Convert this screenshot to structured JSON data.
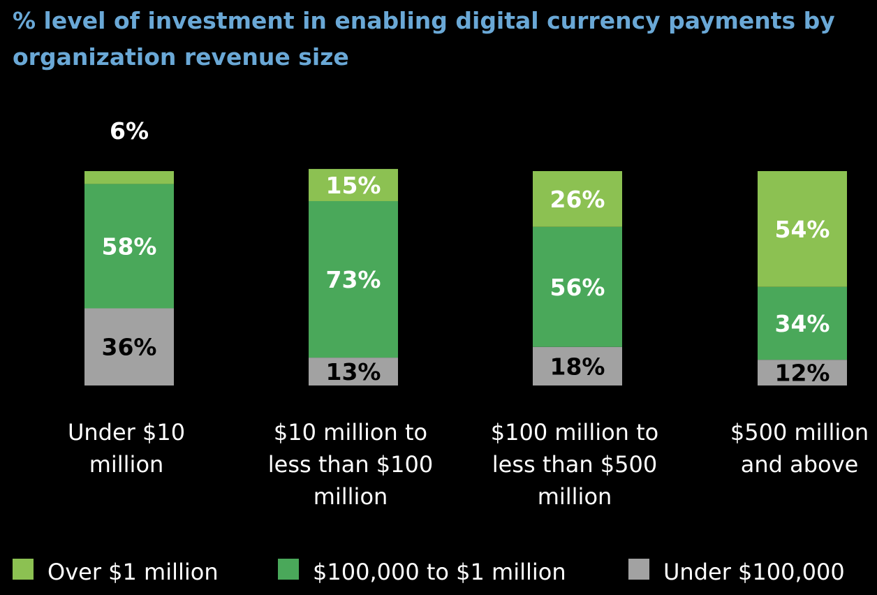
{
  "chart_data": {
    "type": "bar",
    "stacked": true,
    "title": "% level of investment in enabling digital currency payments by organization revenue size",
    "xlabel": "",
    "ylabel": "",
    "ylim": [
      0,
      100
    ],
    "categories": [
      [
        "Under $10",
        "million"
      ],
      [
        "$10 million to",
        "less than $100",
        "million"
      ],
      [
        "$100 million to",
        "less than $500",
        "million"
      ],
      [
        "$500 million",
        "and above"
      ]
    ],
    "series": [
      {
        "name": "Under $100,000",
        "color": "#a2a2a2",
        "label_color": "#000000",
        "values": [
          36,
          13,
          18,
          12
        ],
        "labels": [
          "36%",
          "13%",
          "18%",
          "12%"
        ]
      },
      {
        "name": "$100,000 to $1 million",
        "color": "#4aa85a",
        "label_color": "#ffffff",
        "values": [
          58,
          73,
          56,
          34
        ],
        "labels": [
          "58%",
          "73%",
          "56%",
          "34%"
        ]
      },
      {
        "name": "Over $1 million",
        "color": "#8cc152",
        "label_color": "#ffffff",
        "values": [
          6,
          15,
          26,
          54
        ],
        "labels": [
          "6%",
          "15%",
          "26%",
          "54%"
        ]
      }
    ],
    "legend": {
      "placement": "bottom",
      "order": [
        "Over $1 million",
        "$100,000 to $1 million",
        "Under $100,000"
      ]
    }
  }
}
